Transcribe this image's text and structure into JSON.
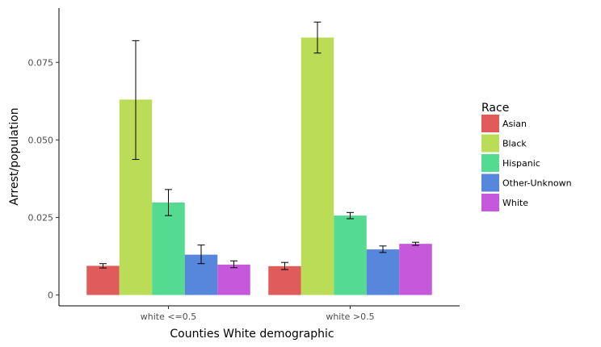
{
  "chart_data": {
    "type": "bar",
    "xlabel": "Counties White demographic",
    "ylabel": "Arrest/population",
    "categories": [
      "white <=0.5",
      "white >0.5"
    ],
    "ylim": [
      -0.0035,
      0.0925
    ],
    "yticks": [
      {
        "value": 0,
        "label": "0"
      },
      {
        "value": 0.025,
        "label": "0.025"
      },
      {
        "value": 0.05,
        "label": "0.050"
      },
      {
        "value": 0.075,
        "label": "0.075"
      }
    ],
    "grid": false,
    "legend": {
      "title": "Race",
      "position": "right"
    },
    "series": [
      {
        "name": "Asian",
        "color": "#e05c5a",
        "values": [
          0.0094,
          0.0093
        ],
        "err_low": [
          0.0087,
          0.0082
        ],
        "err_high": [
          0.0101,
          0.0105
        ]
      },
      {
        "name": "Black",
        "color": "#bbdc56",
        "values": [
          0.063,
          0.083
        ],
        "err_low": [
          0.0437,
          0.078
        ],
        "err_high": [
          0.082,
          0.088
        ]
      },
      {
        "name": "Hispanic",
        "color": "#55da91",
        "values": [
          0.0298,
          0.0256
        ],
        "err_low": [
          0.0256,
          0.0246
        ],
        "err_high": [
          0.034,
          0.0266
        ]
      },
      {
        "name": "Other-Unknown",
        "color": "#5787dd",
        "values": [
          0.013,
          0.0147
        ],
        "err_low": [
          0.0101,
          0.0137
        ],
        "err_high": [
          0.0161,
          0.0158
        ]
      },
      {
        "name": "White",
        "color": "#c659db",
        "values": [
          0.0098,
          0.0165
        ],
        "err_low": [
          0.0088,
          0.016
        ],
        "err_high": [
          0.011,
          0.017
        ]
      }
    ]
  }
}
